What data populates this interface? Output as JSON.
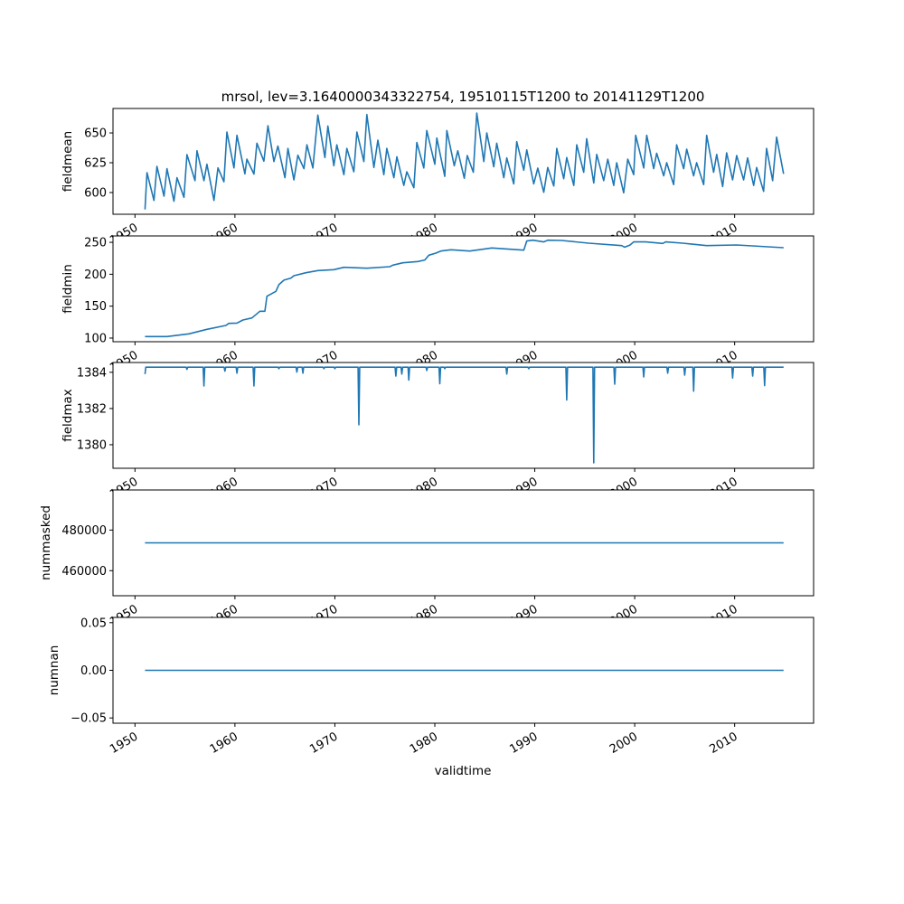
{
  "chart_data": {
    "type": "line",
    "title": "mrsol, lev=3.1640000343322754, 19510115T1200 to 20141129T1200",
    "xlabel": "validtime",
    "xlim": [
      1947.8,
      2017.9
    ],
    "xticks": [
      1950,
      1960,
      1970,
      1980,
      1990,
      2000,
      2010
    ],
    "xticklabels": [
      "1950",
      "1960",
      "1970",
      "1980",
      "1990",
      "2000",
      "2010"
    ],
    "line_color": "#1f77b4",
    "grid": false,
    "panels": [
      {
        "ylabel": "fieldmean",
        "ylim": [
          581.8,
          670.5
        ],
        "yticks": [
          600,
          625,
          650
        ],
        "yticklabels": [
          "600",
          "625",
          "650"
        ],
        "x": [
          1951.0,
          1951.2,
          1951.9,
          1952.2,
          1952.9,
          1953.2,
          1953.9,
          1954.2,
          1954.9,
          1955.2,
          1956.0,
          1956.2,
          1956.9,
          1957.2,
          1957.9,
          1958.3,
          1958.9,
          1959.2,
          1959.9,
          1960.2,
          1961.0,
          1961.2,
          1961.9,
          1962.2,
          1962.9,
          1963.3,
          1963.9,
          1964.3,
          1965.0,
          1965.3,
          1965.9,
          1966.3,
          1966.9,
          1967.2,
          1967.8,
          1968.3,
          1969.0,
          1969.3,
          1969.9,
          1970.2,
          1970.9,
          1971.2,
          1971.9,
          1972.2,
          1972.9,
          1973.2,
          1973.9,
          1974.3,
          1974.9,
          1975.2,
          1975.9,
          1976.2,
          1976.9,
          1977.2,
          1977.9,
          1978.2,
          1978.9,
          1979.2,
          1980.0,
          1980.2,
          1981.0,
          1981.2,
          1981.95,
          1982.3,
          1982.95,
          1983.25,
          1983.85,
          1984.2,
          1984.9,
          1985.2,
          1985.9,
          1986.2,
          1986.9,
          1987.2,
          1987.9,
          1988.2,
          1988.9,
          1989.2,
          1989.9,
          1990.3,
          1990.9,
          1991.3,
          1991.9,
          1992.2,
          1992.9,
          1993.2,
          1993.9,
          1994.2,
          1994.9,
          1995.2,
          1995.9,
          1996.2,
          1996.9,
          1997.3,
          1997.9,
          1998.2,
          1998.9,
          1999.3,
          1999.9,
          2000.1,
          2000.9,
          2001.2,
          2001.9,
          2002.2,
          2002.9,
          2003.2,
          2003.9,
          2004.2,
          2004.9,
          2005.2,
          2005.9,
          2006.2,
          2006.9,
          2007.2,
          2007.9,
          2008.2,
          2008.8,
          2009.2,
          2009.8,
          2010.2,
          2010.9,
          2011.3,
          2011.9,
          2012.2,
          2012.9,
          2013.2,
          2013.8,
          2014.2,
          2014.9
        ],
        "y": [
          585.8,
          616.7,
          593.4,
          622,
          597,
          620,
          592.7,
          612.4,
          596,
          631.8,
          610,
          635,
          610,
          623.7,
          593.4,
          620.7,
          609,
          650.8,
          620.7,
          648,
          615.7,
          628,
          615.5,
          641.4,
          626.3,
          656,
          626,
          639,
          612.4,
          637,
          610.6,
          631.3,
          620,
          640,
          620.6,
          665,
          629.3,
          655.8,
          622.5,
          640,
          615,
          637,
          617.4,
          650.8,
          626,
          665.4,
          621,
          644,
          615,
          637,
          612.4,
          630,
          606,
          617.4,
          604,
          642,
          620.6,
          652,
          623.7,
          645.7,
          613.6,
          652,
          622.5,
          635,
          612,
          631,
          617,
          666.7,
          626,
          650,
          621.6,
          641.4,
          612.4,
          629,
          607.3,
          642.7,
          618.7,
          635.8,
          607.3,
          620.5,
          600.2,
          621,
          605.5,
          637,
          611.6,
          629.3,
          606,
          640,
          617,
          645.2,
          608,
          632,
          610,
          628,
          606,
          625,
          599.8,
          628,
          615,
          648,
          620.6,
          648,
          620,
          633,
          614,
          625,
          606.7,
          640,
          620,
          636.4,
          614,
          625,
          606.7,
          648,
          617,
          632,
          605,
          633.3,
          610.6,
          631,
          610.6,
          629,
          606,
          621,
          601,
          637,
          610,
          646.5,
          615.7
        ]
      },
      {
        "ylabel": "fieldmin",
        "ylim": [
          94.3,
          260
        ],
        "yticks": [
          100,
          150,
          200,
          250
        ],
        "yticklabels": [
          "100",
          "150",
          "200",
          "250"
        ],
        "x": [
          1951.0,
          1953.2,
          1955.4,
          1957.2,
          1959.1,
          1959.4,
          1960.2,
          1960.8,
          1961.7,
          1962.5,
          1963.0,
          1963.2,
          1964.1,
          1964.4,
          1964.9,
          1965.6,
          1965.9,
          1967.1,
          1968.3,
          1969.9,
          1970.9,
          1973.2,
          1975.5,
          1975.8,
          1976.8,
          1978.3,
          1979.0,
          1979.4,
          1980.1,
          1980.6,
          1981.6,
          1983.5,
          1985.7,
          1988.9,
          1989.2,
          1989.8,
          1990.9,
          1991.3,
          1992.7,
          1995.4,
          1998.7,
          1999.0,
          1999.5,
          1999.9,
          2001.1,
          2002.8,
          2003.1,
          2004.8,
          2007.2,
          2010.2,
          2014.9
        ],
        "y": [
          102.4,
          102.4,
          106.6,
          113.7,
          119.8,
          123,
          123.5,
          128.3,
          131.6,
          142,
          142,
          165.6,
          173.2,
          183.6,
          190.7,
          194,
          197.7,
          202.4,
          205.8,
          207.2,
          210.9,
          209.5,
          211.8,
          214.3,
          218,
          219.9,
          222.3,
          229.9,
          233.1,
          236.4,
          238.4,
          236.4,
          241.2,
          237.8,
          252,
          253.4,
          250.6,
          253.4,
          252.9,
          248.7,
          244.9,
          242.5,
          245.5,
          250.6,
          250.6,
          248.3,
          250.6,
          248.7,
          244.9,
          245.9,
          241.6
        ]
      },
      {
        "ylabel": "fieldmax",
        "ylim": [
          1378.7,
          1384.54
        ],
        "yticks": [
          1380,
          1382,
          1384
        ],
        "yticklabels": [
          "1380",
          "1382",
          "1384"
        ],
        "start": [
          1951.0,
          1383.9
        ],
        "end": 2014.9,
        "baseline": 1384.28,
        "dips": [
          [
            1955.2,
            1384.16
          ],
          [
            1956.9,
            1383.24
          ],
          [
            1959.0,
            1384.06
          ],
          [
            1960.2,
            1383.95
          ],
          [
            1961.9,
            1383.24
          ],
          [
            1964.4,
            1384.2
          ],
          [
            1966.2,
            1384.01
          ],
          [
            1966.8,
            1383.95
          ],
          [
            1968.9,
            1384.2
          ],
          [
            1970.0,
            1384.2
          ],
          [
            1972.4,
            1381.1
          ],
          [
            1976.1,
            1383.79
          ],
          [
            1976.7,
            1383.9
          ],
          [
            1977.4,
            1383.57
          ],
          [
            1979.2,
            1384.1
          ],
          [
            1980.5,
            1383.37
          ],
          [
            1981.0,
            1384.2
          ],
          [
            1987.2,
            1383.9
          ],
          [
            1989.4,
            1384.2
          ],
          [
            1993.2,
            1382.47
          ],
          [
            1995.9,
            1379.0
          ],
          [
            1998.0,
            1383.34
          ],
          [
            2000.9,
            1383.74
          ],
          [
            2003.3,
            1383.95
          ],
          [
            2005.0,
            1383.84
          ],
          [
            2005.9,
            1382.96
          ],
          [
            2009.8,
            1383.68
          ],
          [
            2011.8,
            1383.79
          ],
          [
            2013.0,
            1383.26
          ]
        ]
      },
      {
        "ylabel": "nummasked",
        "ylim": [
          447650,
          499750
        ],
        "yticks": [
          460000,
          480000
        ],
        "yticklabels": [
          "460000",
          "480000"
        ],
        "x": [
          1951.0,
          2014.9
        ],
        "y": [
          473700,
          473700
        ]
      },
      {
        "ylabel": "numnan",
        "ylim": [
          -0.0555,
          0.0555
        ],
        "yticks": [
          -0.05,
          0,
          0.05
        ],
        "yticklabels": [
          "−0.05",
          "0.00",
          "0.05"
        ],
        "x": [
          1951.0,
          2014.9
        ],
        "y": [
          0,
          0
        ]
      }
    ]
  }
}
